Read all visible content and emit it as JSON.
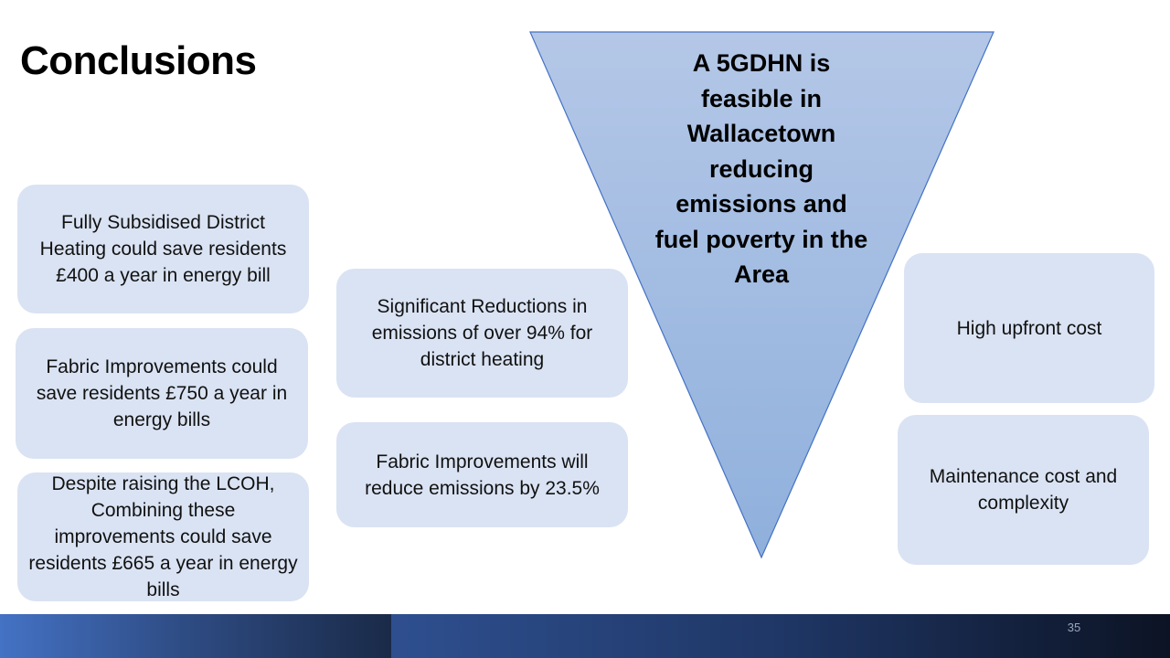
{
  "slide": {
    "title": "Conclusions",
    "page_number": "35"
  },
  "left_column": [
    {
      "text": "Fully Subsidised District Heating could save residents £400 a year in energy bill"
    },
    {
      "text": "Fabric Improvements could save residents £750 a year in energy bills"
    },
    {
      "text": "Despite raising the LCOH, Combining these improvements could save residents £665 a year in energy bills"
    }
  ],
  "middle_column": [
    {
      "text": "Significant Reductions in emissions of over 94% for district heating"
    },
    {
      "text": "Fabric Improvements will reduce emissions by 23.5%"
    }
  ],
  "right_column": [
    {
      "text": "High upfront cost"
    },
    {
      "text": "Maintenance cost and complexity"
    }
  ],
  "triangle": {
    "text": "A 5GDHN is feasible in Wallacetown reducing emissions and fuel poverty in the Area",
    "fill_top": "#b4c7e7",
    "fill_bottom": "#8fb0dc",
    "stroke": "#4472c4"
  },
  "colors": {
    "box_fill": "#dae3f3",
    "footer_accent": "#4472c4",
    "footer_dark": "#0c1324"
  }
}
